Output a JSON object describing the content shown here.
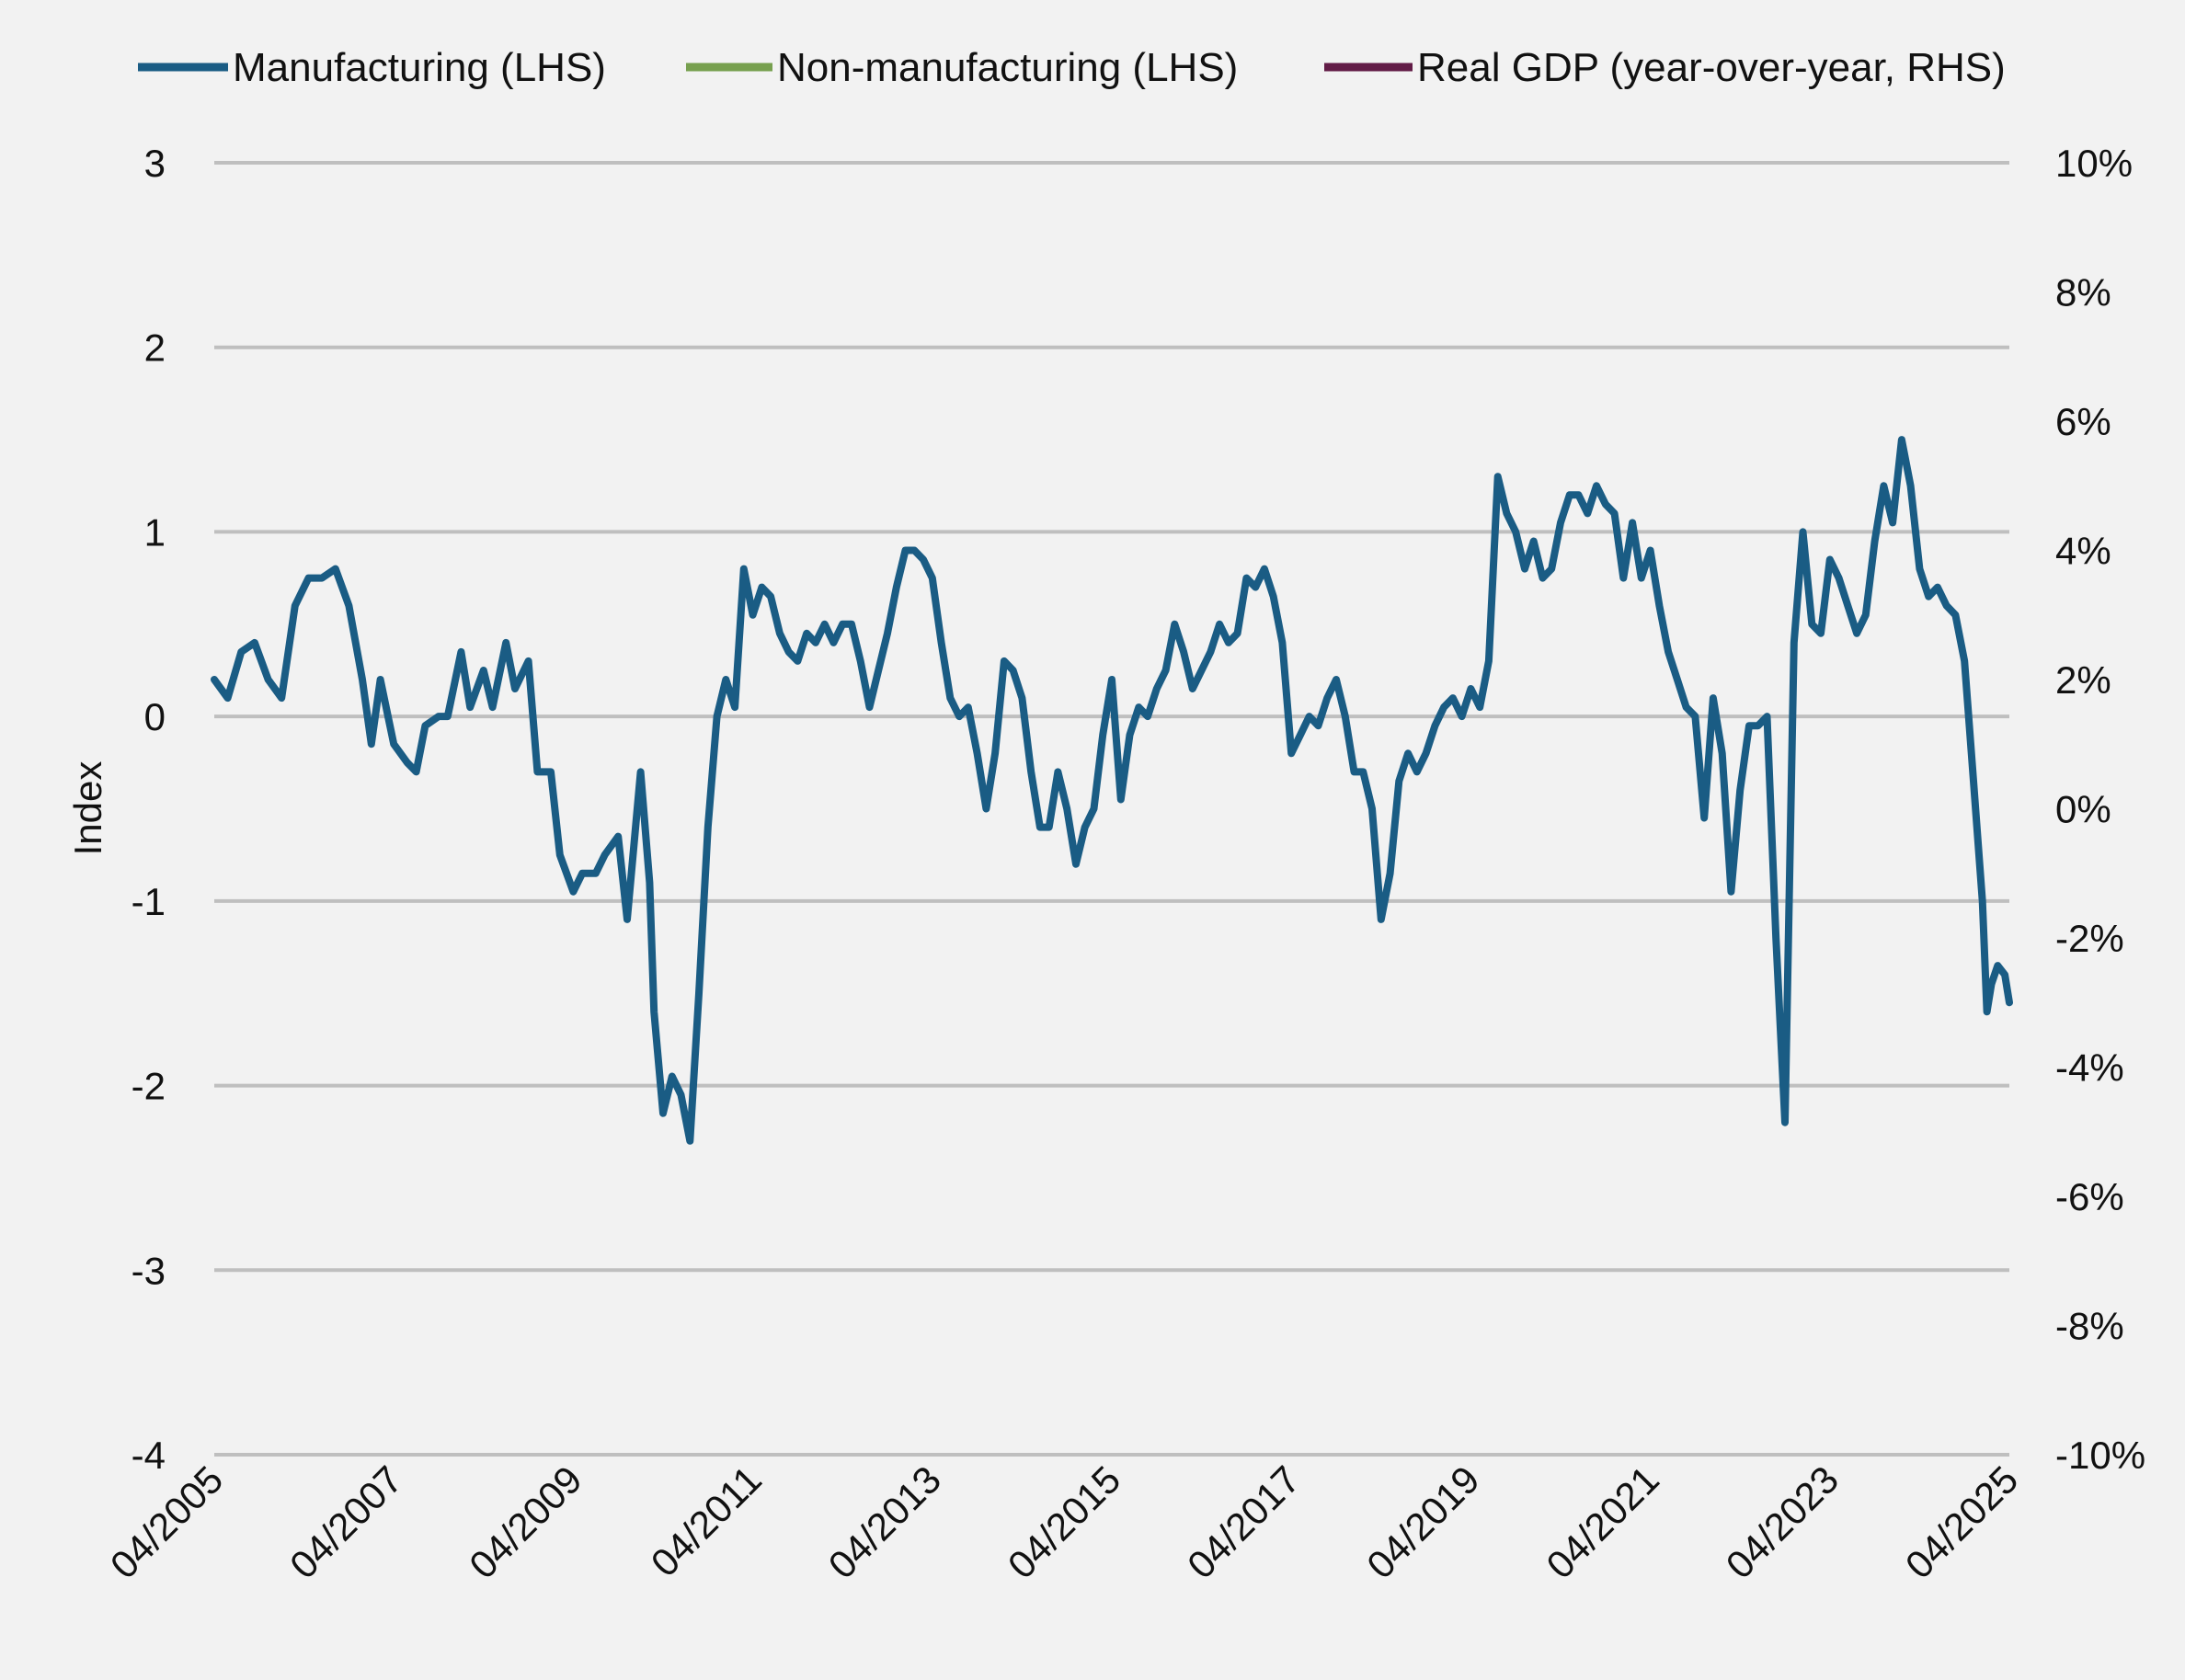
{
  "chart_data": {
    "type": "line",
    "title": "",
    "ylabel": "Index",
    "y_left_lim": [
      -4,
      3
    ],
    "y_left_ticks": [
      "3",
      "2",
      "1",
      "0",
      "-1",
      "-2",
      "-3",
      "-4"
    ],
    "y_right_lim": [
      -10,
      10
    ],
    "y_right_ticks": [
      "10%",
      "8%",
      "6%",
      "4%",
      "2%",
      "0%",
      "-2%",
      "-4%",
      "-6%",
      "-8%",
      "-10%"
    ],
    "x_range": [
      2005.25,
      2025.25
    ],
    "x_ticks": [
      "04/2005",
      "04/2007",
      "04/2009",
      "04/2011",
      "04/2013",
      "04/2015",
      "04/2017",
      "04/2019",
      "04/2021",
      "04/2023",
      "04/2025"
    ],
    "legend_position": "top",
    "colors": {
      "manufacturing": "#1a5c84",
      "non_manufacturing": "#77a04f",
      "real_gdp": "#621c47",
      "grid": "#bfbfbf"
    },
    "series": [
      {
        "name": "Manufacturing (LHS)",
        "axis": "left",
        "color": "#1a5c84",
        "points": [
          [
            2005.25,
            0.2
          ],
          [
            2005.4,
            0.1
          ],
          [
            2005.55,
            0.35
          ],
          [
            2005.7,
            0.4
          ],
          [
            2005.85,
            0.2
          ],
          [
            2006.0,
            0.1
          ],
          [
            2006.15,
            0.6
          ],
          [
            2006.3,
            0.75
          ],
          [
            2006.45,
            0.75
          ],
          [
            2006.6,
            0.8
          ],
          [
            2006.75,
            0.6
          ],
          [
            2006.9,
            0.2
          ],
          [
            2007.0,
            -0.15
          ],
          [
            2007.1,
            0.2
          ],
          [
            2007.25,
            -0.15
          ],
          [
            2007.4,
            -0.25
          ],
          [
            2007.5,
            -0.3
          ],
          [
            2007.6,
            -0.05
          ],
          [
            2007.75,
            0.0
          ],
          [
            2007.85,
            0.0
          ],
          [
            2008.0,
            0.35
          ],
          [
            2008.1,
            0.05
          ],
          [
            2008.25,
            0.25
          ],
          [
            2008.35,
            0.05
          ],
          [
            2008.5,
            0.4
          ],
          [
            2008.6,
            0.15
          ],
          [
            2008.75,
            0.3
          ],
          [
            2008.85,
            -0.3
          ],
          [
            2009.0,
            -0.3
          ],
          [
            2009.1,
            -0.75
          ],
          [
            2009.25,
            -0.95
          ],
          [
            2009.35,
            -0.85
          ],
          [
            2009.5,
            -0.85
          ],
          [
            2009.6,
            -0.75
          ],
          [
            2009.75,
            -0.65
          ],
          [
            2009.85,
            -1.1
          ],
          [
            2010.0,
            -0.3
          ],
          [
            2010.1,
            -0.9
          ],
          [
            2010.15,
            -1.6
          ],
          [
            2010.25,
            -2.15
          ],
          [
            2010.35,
            -1.95
          ],
          [
            2010.45,
            -2.05
          ],
          [
            2010.55,
            -2.3
          ],
          [
            2010.65,
            -1.5
          ],
          [
            2010.75,
            -0.6
          ],
          [
            2010.85,
            0.0
          ],
          [
            2010.95,
            0.2
          ],
          [
            2011.05,
            0.05
          ],
          [
            2011.15,
            0.8
          ],
          [
            2011.25,
            0.55
          ],
          [
            2011.35,
            0.7
          ],
          [
            2011.45,
            0.65
          ],
          [
            2011.55,
            0.45
          ],
          [
            2011.65,
            0.35
          ],
          [
            2011.75,
            0.3
          ],
          [
            2011.85,
            0.45
          ],
          [
            2011.95,
            0.4
          ],
          [
            2012.05,
            0.5
          ],
          [
            2012.15,
            0.4
          ],
          [
            2012.25,
            0.5
          ],
          [
            2012.35,
            0.5
          ],
          [
            2012.45,
            0.3
          ],
          [
            2012.55,
            0.05
          ],
          [
            2012.65,
            0.25
          ],
          [
            2012.75,
            0.45
          ],
          [
            2012.85,
            0.7
          ],
          [
            2012.95,
            0.9
          ],
          [
            2013.05,
            0.9
          ],
          [
            2013.15,
            0.85
          ],
          [
            2013.25,
            0.75
          ],
          [
            2013.35,
            0.4
          ],
          [
            2013.45,
            0.1
          ],
          [
            2013.55,
            0.0
          ],
          [
            2013.65,
            0.05
          ],
          [
            2013.75,
            -0.2
          ],
          [
            2013.85,
            -0.5
          ],
          [
            2013.95,
            -0.2
          ],
          [
            2014.05,
            0.3
          ],
          [
            2014.15,
            0.25
          ],
          [
            2014.25,
            0.1
          ],
          [
            2014.35,
            -0.3
          ],
          [
            2014.45,
            -0.6
          ],
          [
            2014.55,
            -0.6
          ],
          [
            2014.65,
            -0.3
          ],
          [
            2014.75,
            -0.5
          ],
          [
            2014.85,
            -0.8
          ],
          [
            2014.95,
            -0.6
          ],
          [
            2015.05,
            -0.5
          ],
          [
            2015.15,
            -0.1
          ],
          [
            2015.25,
            0.2
          ],
          [
            2015.35,
            -0.45
          ],
          [
            2015.45,
            -0.1
          ],
          [
            2015.55,
            0.05
          ],
          [
            2015.65,
            0.0
          ],
          [
            2015.75,
            0.15
          ],
          [
            2015.85,
            0.25
          ],
          [
            2015.95,
            0.5
          ],
          [
            2016.05,
            0.35
          ],
          [
            2016.15,
            0.15
          ],
          [
            2016.25,
            0.25
          ],
          [
            2016.35,
            0.35
          ],
          [
            2016.45,
            0.5
          ],
          [
            2016.55,
            0.4
          ],
          [
            2016.65,
            0.45
          ],
          [
            2016.75,
            0.75
          ],
          [
            2016.85,
            0.7
          ],
          [
            2016.95,
            0.8
          ],
          [
            2017.05,
            0.65
          ],
          [
            2017.15,
            0.4
          ],
          [
            2017.25,
            -0.2
          ],
          [
            2017.35,
            -0.1
          ],
          [
            2017.45,
            0.0
          ],
          [
            2017.55,
            -0.05
          ],
          [
            2017.65,
            0.1
          ],
          [
            2017.75,
            0.2
          ],
          [
            2017.85,
            0.0
          ],
          [
            2017.95,
            -0.3
          ],
          [
            2018.05,
            -0.3
          ],
          [
            2018.15,
            -0.5
          ],
          [
            2018.25,
            -1.1
          ],
          [
            2018.35,
            -0.85
          ],
          [
            2018.45,
            -0.35
          ],
          [
            2018.55,
            -0.2
          ],
          [
            2018.65,
            -0.3
          ],
          [
            2018.75,
            -0.2
          ],
          [
            2018.85,
            -0.05
          ],
          [
            2018.95,
            0.05
          ],
          [
            2019.05,
            0.1
          ],
          [
            2019.15,
            0.0
          ],
          [
            2019.25,
            0.15
          ],
          [
            2019.35,
            0.05
          ],
          [
            2019.45,
            0.3
          ],
          [
            2019.55,
            1.3
          ],
          [
            2019.65,
            1.1
          ],
          [
            2019.75,
            1.0
          ],
          [
            2019.85,
            0.8
          ],
          [
            2019.95,
            0.95
          ],
          [
            2020.05,
            0.75
          ],
          [
            2020.15,
            0.8
          ],
          [
            2020.25,
            1.05
          ],
          [
            2020.35,
            1.2
          ],
          [
            2020.45,
            1.2
          ],
          [
            2020.55,
            1.1
          ],
          [
            2020.65,
            1.25
          ],
          [
            2020.75,
            1.15
          ],
          [
            2020.85,
            1.1
          ],
          [
            2020.95,
            0.75
          ],
          [
            2021.05,
            1.05
          ],
          [
            2021.15,
            0.75
          ],
          [
            2021.25,
            0.9
          ],
          [
            2021.35,
            0.6
          ],
          [
            2021.45,
            0.35
          ],
          [
            2021.55,
            0.2
          ],
          [
            2021.65,
            0.05
          ],
          [
            2021.75,
            0.0
          ],
          [
            2021.85,
            -0.55
          ],
          [
            2021.95,
            0.1
          ],
          [
            2022.05,
            -0.2
          ],
          [
            2022.15,
            -0.95
          ],
          [
            2022.25,
            -0.4
          ],
          [
            2022.35,
            -0.05
          ],
          [
            2022.45,
            -0.05
          ],
          [
            2022.55,
            0.0
          ],
          [
            2022.65,
            -1.2
          ],
          [
            2022.75,
            -2.2
          ],
          [
            2022.85,
            0.4
          ],
          [
            2022.95,
            1.0
          ],
          [
            2023.05,
            0.5
          ],
          [
            2023.15,
            0.45
          ],
          [
            2023.25,
            0.85
          ],
          [
            2023.35,
            0.75
          ],
          [
            2023.45,
            0.6
          ],
          [
            2023.55,
            0.45
          ],
          [
            2023.65,
            0.55
          ],
          [
            2023.75,
            0.95
          ],
          [
            2023.85,
            1.25
          ],
          [
            2023.95,
            1.05
          ],
          [
            2024.05,
            1.5
          ],
          [
            2024.15,
            1.25
          ],
          [
            2024.25,
            0.8
          ],
          [
            2024.35,
            0.65
          ],
          [
            2024.45,
            0.7
          ],
          [
            2024.55,
            0.6
          ],
          [
            2024.65,
            0.55
          ],
          [
            2024.75,
            0.3
          ],
          [
            2024.85,
            -0.35
          ],
          [
            2024.95,
            -1.0
          ],
          [
            2025.0,
            -1.6
          ],
          [
            2025.05,
            -1.45
          ],
          [
            2025.12,
            -1.35
          ],
          [
            2025.2,
            -1.4
          ],
          [
            2025.25,
            -1.55
          ]
        ]
      }
    ]
  },
  "legend": {
    "manufacturing": "Manufacturing (LHS)",
    "non_manufacturing": "Non-manufacturing (LHS)",
    "real_gdp": "Real GDP (year-over-year, RHS)"
  }
}
